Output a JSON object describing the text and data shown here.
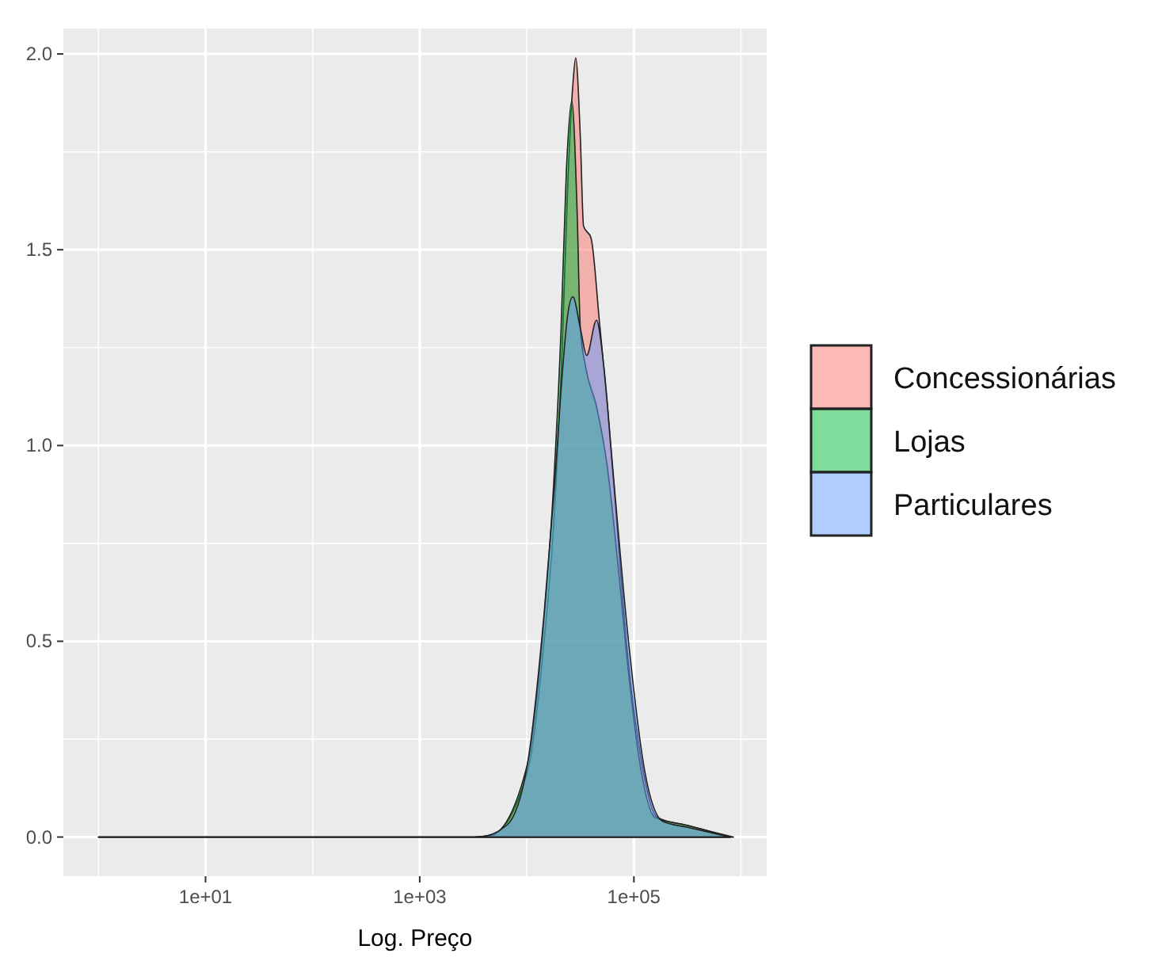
{
  "chart_data": {
    "type": "area",
    "xlabel": "Log. Preço",
    "log": "x",
    "grid": true,
    "legend": "right",
    "xlim": [
      0.47,
      1740000
    ],
    "ylim": [
      -0.1,
      2.065
    ],
    "xticks": [
      {
        "value": 10,
        "label": "1e+01"
      },
      {
        "value": 1000,
        "label": "1e+03"
      },
      {
        "value": 100000,
        "label": "1e+05"
      }
    ],
    "yticks": [
      {
        "value": 0,
        "label": "0.0"
      },
      {
        "value": 0.5,
        "label": "0.5"
      },
      {
        "value": 1,
        "label": "1.0"
      },
      {
        "value": 1.5,
        "label": "1.5"
      },
      {
        "value": 2,
        "label": "2.0"
      }
    ],
    "series": [
      {
        "name": "Concessionárias",
        "color": "#f8766d",
        "x": [
          1,
          3200,
          4700,
          10200,
          14500,
          18200,
          21400,
          24000,
          26900,
          28600,
          31600,
          33900,
          39800,
          47900,
          56200,
          67600,
          85100,
          112000,
          166000,
          309000,
          851000
        ],
        "values": [
          0,
          0,
          0.005,
          0.17,
          0.5,
          0.84,
          1.25,
          1.65,
          1.92,
          1.99,
          1.79,
          1.56,
          1.53,
          1.31,
          1.11,
          0.84,
          0.5,
          0.23,
          0.05,
          0.03,
          0
        ]
      },
      {
        "name": "Lojas",
        "color": "#00ba38",
        "x": [
          1,
          3200,
          4700,
          10000,
          14100,
          17800,
          20900,
          23400,
          26300,
          29500,
          31600,
          35500,
          44700,
          56200,
          70800,
          89100,
          112000,
          158000,
          316000,
          794000
        ],
        "values": [
          0,
          0,
          0.005,
          0.18,
          0.52,
          0.9,
          1.3,
          1.7,
          1.88,
          1.6,
          1.3,
          1.2,
          1.1,
          0.95,
          0.7,
          0.42,
          0.2,
          0.05,
          0.03,
          0
        ]
      },
      {
        "name": "Particulares",
        "color": "#619cff",
        "x": [
          1,
          3500,
          6500,
          10200,
          14500,
          18200,
          21400,
          24000,
          26900,
          31600,
          36300,
          44700,
          52500,
          63100,
          89100,
          126000,
          186000,
          316000,
          794000
        ],
        "values": [
          0,
          0,
          0.03,
          0.19,
          0.57,
          0.9,
          1.18,
          1.33,
          1.38,
          1.3,
          1.23,
          1.32,
          1.2,
          0.95,
          0.5,
          0.17,
          0.04,
          0.025,
          0
        ]
      }
    ]
  }
}
